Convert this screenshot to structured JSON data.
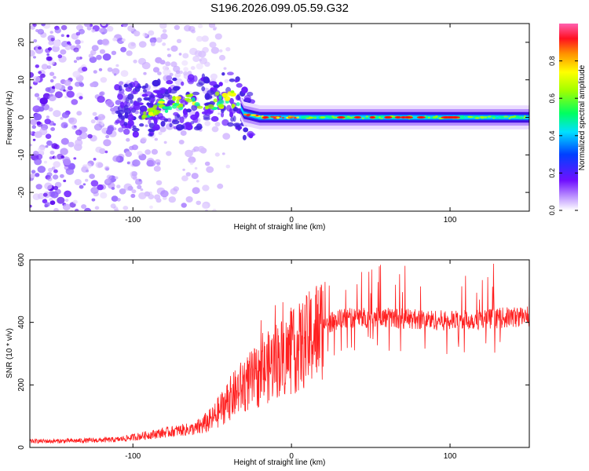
{
  "title": "S196.2026.099.05.59.G32",
  "chart_data": [
    {
      "type": "heatmap",
      "name": "spectrogram",
      "xlabel": "Height of straight line (km)",
      "ylabel": "Frequency (Hz)",
      "xlim": [
        -165,
        150
      ],
      "ylim": [
        -25,
        25
      ],
      "xticks": [
        -100,
        0,
        100
      ],
      "yticks": [
        -20,
        -10,
        0,
        10,
        20
      ],
      "colorbar": {
        "label": "Normalized spectral amplitude",
        "range": [
          0,
          1
        ],
        "ticks": [
          0.0,
          0.2,
          0.4,
          0.6,
          0.8
        ]
      },
      "ridge": {
        "x": [
          -90,
          -80,
          -70,
          -60,
          -50,
          -40,
          -35,
          -30,
          -20,
          -10,
          0,
          50,
          100,
          150
        ],
        "freq": [
          2,
          3,
          4,
          4,
          4,
          5,
          5,
          1,
          0,
          0,
          0,
          0,
          0,
          0
        ]
      }
    },
    {
      "type": "line",
      "name": "snr",
      "xlabel": "Height of straight line (km)",
      "ylabel": "SNR (10 * v/v)",
      "xlim": [
        -165,
        150
      ],
      "ylim": [
        0,
        600
      ],
      "xticks": [
        -100,
        0,
        100
      ],
      "yticks": [
        0,
        200,
        400,
        600
      ],
      "series": [
        {
          "name": "SNR",
          "color": "#ff2020",
          "x": [
            -165,
            -150,
            -130,
            -110,
            -90,
            -70,
            -60,
            -50,
            -40,
            -30,
            -20,
            -10,
            0,
            10,
            20,
            30,
            40,
            60,
            80,
            100,
            120,
            150
          ],
          "values": [
            20,
            20,
            22,
            25,
            40,
            55,
            60,
            90,
            150,
            200,
            230,
            280,
            300,
            340,
            390,
            410,
            415,
            415,
            410,
            405,
            410,
            420
          ]
        }
      ]
    }
  ]
}
